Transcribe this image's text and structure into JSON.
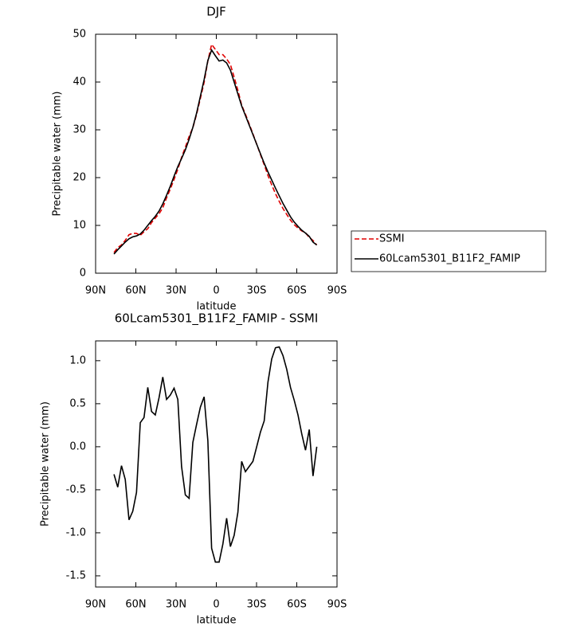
{
  "chart_data": [
    {
      "type": "line",
      "title": "DJF",
      "x_label": "latitude",
      "y_label": "Precipitable water (mm)",
      "x": [
        76.3,
        73.5,
        70.7,
        67.9,
        65.1,
        62.3,
        59.5,
        56.7,
        53.9,
        51.1,
        48.3,
        45.5,
        42.7,
        39.9,
        37.1,
        34.3,
        31.5,
        28.7,
        25.9,
        23.1,
        20.3,
        17.5,
        14.7,
        11.9,
        9.1,
        6.3,
        3.5,
        0.7,
        -2.1,
        -4.9,
        -7.7,
        -10.5,
        -13.3,
        -16.1,
        -18.9,
        -21.7,
        -24.5,
        -27.3,
        -30.1,
        -32.9,
        -35.7,
        -38.5,
        -41.3,
        -44.1,
        -46.9,
        -49.7,
        -52.5,
        -55.3,
        -58.1,
        -60.9,
        -63.7,
        -66.5,
        -69.3,
        -72.1,
        -74.9
      ],
      "series": [
        {
          "name": "SSMI",
          "color": "#e00000",
          "line_style": "dashed",
          "values": [
            4.32,
            5.37,
            5.92,
            6.88,
            8.05,
            8.35,
            8.33,
            7.92,
            8.66,
            9.31,
            10.59,
            11.53,
            12.43,
            13.69,
            15.75,
            17.6,
            19.62,
            21.75,
            24.23,
            26.36,
            28.6,
            30.45,
            33.24,
            36.54,
            39.92,
            44.43,
            47.88,
            46.84,
            45.74,
            45.73,
            44.83,
            43.66,
            41.03,
            38.26,
            35.17,
            33.29,
            31.23,
            29.17,
            27.0,
            24.83,
            22.7,
            20.45,
            18.48,
            16.65,
            15.04,
            13.54,
            12.3,
            11.11,
            10.16,
            9.43,
            8.85,
            8.44,
            7.5,
            6.84,
            5.9
          ]
        },
        {
          "name": "60Lcam5301_B11F2_FAMIP",
          "color": "#000000",
          "line_style": "solid",
          "values": [
            4.0,
            4.9,
            5.7,
            6.5,
            7.2,
            7.6,
            7.8,
            8.2,
            9.0,
            10.0,
            11.0,
            11.9,
            13.0,
            14.5,
            16.3,
            18.2,
            20.3,
            22.3,
            24.0,
            25.8,
            28.0,
            30.5,
            33.5,
            37.0,
            40.5,
            44.5,
            46.7,
            45.5,
            44.4,
            44.6,
            44.0,
            42.5,
            40.0,
            37.5,
            35.0,
            33.0,
            31.0,
            29.0,
            27.0,
            25.0,
            23.0,
            21.2,
            19.5,
            17.8,
            16.2,
            14.6,
            13.2,
            11.8,
            10.7,
            9.8,
            9.0,
            8.4,
            7.7,
            6.5,
            5.9
          ]
        }
      ],
      "xlim": [
        90,
        -90
      ],
      "xticks": [
        {
          "value": 90,
          "label": "90N"
        },
        {
          "value": 60,
          "label": "60N"
        },
        {
          "value": 30,
          "label": "30N"
        },
        0,
        {
          "value": -30,
          "label": "30S"
        },
        {
          "value": -60,
          "label": "60S"
        },
        {
          "value": -90,
          "label": "90S"
        }
      ],
      "ylim": [
        0,
        50
      ],
      "yticks": [
        0,
        10,
        20,
        30,
        40,
        50
      ],
      "legend": "right"
    },
    {
      "type": "line",
      "title": "60Lcam5301_B11F2_FAMIP - SSMI",
      "x_label": "latitude",
      "y_label": "Precipitable water (mm)",
      "x": [
        76.3,
        73.5,
        70.7,
        67.9,
        65.1,
        62.3,
        59.5,
        56.7,
        53.9,
        51.1,
        48.3,
        45.5,
        42.7,
        39.9,
        37.1,
        34.3,
        31.5,
        28.7,
        25.9,
        23.1,
        20.3,
        17.5,
        14.7,
        11.9,
        9.1,
        6.3,
        3.5,
        0.7,
        -2.1,
        -4.9,
        -7.7,
        -10.5,
        -13.3,
        -16.1,
        -18.9,
        -21.7,
        -24.5,
        -27.3,
        -30.1,
        -32.9,
        -35.7,
        -38.5,
        -41.3,
        -44.1,
        -46.9,
        -49.7,
        -52.5,
        -55.3,
        -58.1,
        -60.9,
        -63.7,
        -66.5,
        -69.3,
        -72.1,
        -74.9
      ],
      "color": "#000000",
      "values": [
        -0.32,
        -0.47,
        -0.22,
        -0.38,
        -0.85,
        -0.75,
        -0.53,
        0.28,
        0.34,
        0.69,
        0.41,
        0.37,
        0.57,
        0.81,
        0.55,
        0.6,
        0.68,
        0.55,
        -0.23,
        -0.56,
        -0.6,
        0.05,
        0.26,
        0.46,
        0.58,
        0.07,
        -1.18,
        -1.34,
        -1.34,
        -1.13,
        -0.83,
        -1.16,
        -1.03,
        -0.76,
        -0.17,
        -0.29,
        -0.23,
        -0.17,
        0.0,
        0.17,
        0.3,
        0.75,
        1.02,
        1.15,
        1.16,
        1.06,
        0.9,
        0.69,
        0.54,
        0.37,
        0.15,
        -0.04,
        0.2,
        -0.34,
        0.0
      ],
      "xlim": [
        90,
        -90
      ],
      "xticks": [
        {
          "value": 90,
          "label": "90N"
        },
        {
          "value": 60,
          "label": "60N"
        },
        {
          "value": 30,
          "label": "30N"
        },
        0,
        {
          "value": -30,
          "label": "30S"
        },
        {
          "value": -60,
          "label": "60S"
        },
        {
          "value": -90,
          "label": "90S"
        }
      ],
      "ylim": [
        -1.63,
        1.23
      ],
      "yticks": [
        {
          "value": 1,
          "label": "1.0"
        },
        0.5,
        {
          "value": 0,
          "label": "0.0"
        },
        -0.5,
        {
          "value": -1,
          "label": "-1.0"
        },
        -1.5
      ]
    }
  ]
}
